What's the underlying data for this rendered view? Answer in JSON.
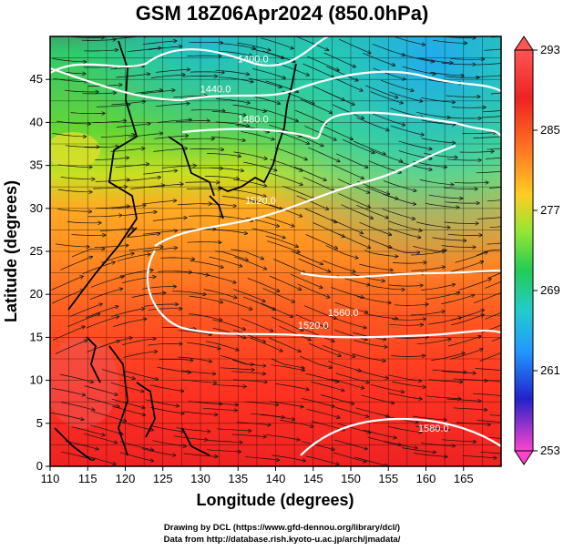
{
  "title": "GSM 18Z06Apr2024 (850.0hPa)",
  "xlabel": "Longitude (degrees)",
  "ylabel": "Latitude (degrees)",
  "x_ticks": [
    110,
    115,
    120,
    125,
    130,
    135,
    140,
    145,
    150,
    155,
    160,
    165
  ],
  "y_ticks": [
    0,
    5,
    10,
    15,
    20,
    25,
    30,
    35,
    40,
    45
  ],
  "xlim": [
    110,
    170
  ],
  "ylim": [
    0,
    50
  ],
  "colorbar": {
    "ticks": [
      293,
      285,
      277,
      269,
      261,
      253
    ],
    "min": 253,
    "max": 293,
    "colors": [
      "#ff44cc",
      "#2222cc",
      "#2299ff",
      "#22cccc",
      "#22cc55",
      "#99e633",
      "#ffcc22",
      "#ff7722",
      "#ee2222",
      "#ff5555"
    ]
  },
  "contour_labels": [
    {
      "text": "1400.0",
      "lon": 137,
      "lat": 47
    },
    {
      "text": "1440.0",
      "lon": 132,
      "lat": 43.5
    },
    {
      "text": "1480.0",
      "lon": 137,
      "lat": 40
    },
    {
      "text": "1520.0",
      "lon": 138,
      "lat": 30.5
    },
    {
      "text": "1520.0",
      "lon": 145,
      "lat": 16
    },
    {
      "text": "1560.0",
      "lon": 149,
      "lat": 17.5
    },
    {
      "text": "1580.0",
      "lon": 161,
      "lat": 4
    }
  ],
  "credits": [
    "Drawing by DCL (https://www.gfd-dennou.org/library/dcl/)",
    "Data from http://database.rish.kyoto-u.ac.jp/arch/jmadata/"
  ]
}
